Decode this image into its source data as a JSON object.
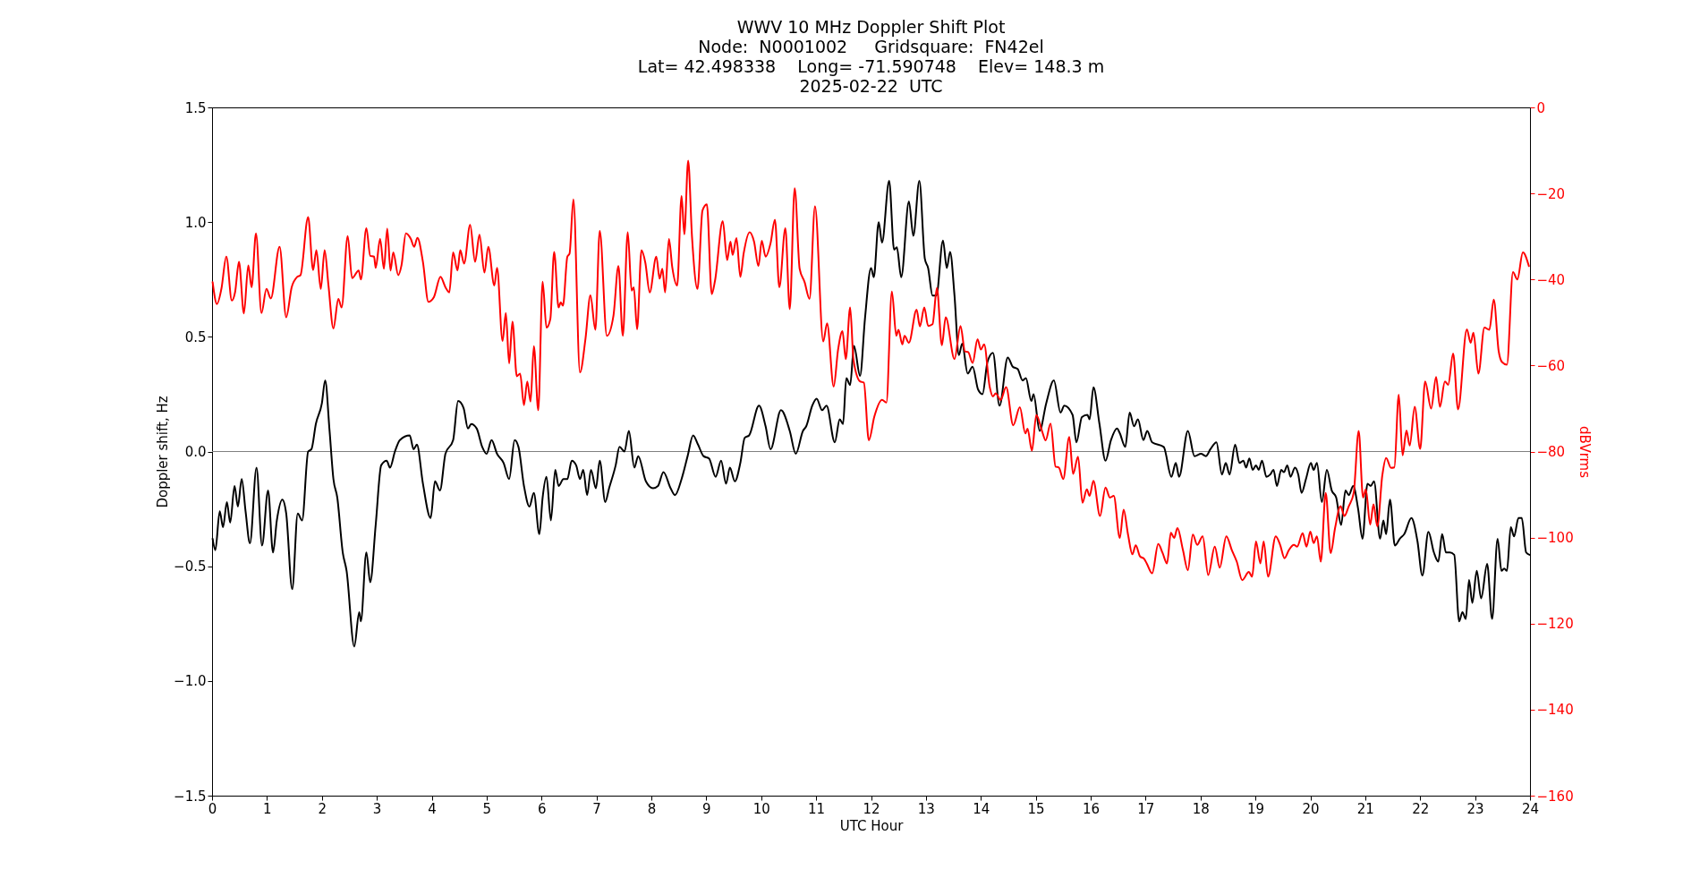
{
  "chart_data": {
    "type": "line",
    "title": "WWV 10 MHz Doppler Shift Plot",
    "subtitle": "Node:  N0001002     Gridsquare:  FN42el\nLat= 42.498338    Long= -71.590748    Elev= 148.3 m\n2025-02-22  UTC",
    "xlabel": "UTC Hour",
    "ylabel": "Doppler shift, Hz",
    "y2label": "dBVrms",
    "xlim": [
      0,
      24
    ],
    "xticks": [
      0,
      1,
      2,
      3,
      4,
      5,
      6,
      7,
      8,
      9,
      10,
      11,
      12,
      13,
      14,
      15,
      16,
      17,
      18,
      19,
      20,
      21,
      22,
      23,
      24
    ],
    "ylim": [
      -1.5,
      1.5
    ],
    "yticks": [
      {
        "value": -1.5,
        "label": "−1.5"
      },
      {
        "value": -1,
        "label": "−1.0"
      },
      {
        "value": -0.5,
        "label": "−0.5"
      },
      {
        "value": 0,
        "label": "0.0"
      },
      {
        "value": 0.5,
        "label": "0.5"
      },
      {
        "value": 1,
        "label": "1.0"
      },
      {
        "value": 1.5,
        "label": "1.5"
      }
    ],
    "y2lim": [
      -160,
      0
    ],
    "y2ticks": [
      {
        "value": -160,
        "label": "−160"
      },
      {
        "value": -140,
        "label": "−140"
      },
      {
        "value": -120,
        "label": "−120"
      },
      {
        "value": -100,
        "label": "−100"
      },
      {
        "value": -80,
        "label": "−80"
      },
      {
        "value": -60,
        "label": "−60"
      },
      {
        "value": -40,
        "label": "−40"
      },
      {
        "value": -20,
        "label": "−20"
      },
      0
    ],
    "ref_lines": [
      {
        "axis": "y",
        "value": 0,
        "color": "#808080"
      }
    ],
    "grid": false,
    "series": [
      {
        "color": "#000000",
        "x": [
          0.01,
          0.06,
          0.14,
          0.2,
          0.27,
          0.33,
          0.41,
          0.47,
          0.54,
          0.61,
          0.69,
          0.81,
          0.91,
          1.02,
          1.11,
          1.18,
          1.28,
          1.35,
          1.46,
          1.56,
          1.64,
          1.75,
          1.81,
          1.89,
          2.0,
          2.06,
          2.14,
          2.21,
          2.28,
          2.38,
          2.45,
          2.59,
          2.68,
          2.71,
          2.81,
          2.88,
          2.98,
          3.08,
          3.18,
          3.24,
          3.33,
          3.42,
          3.6,
          3.67,
          3.73,
          3.84,
          3.98,
          4.06,
          4.15,
          4.25,
          4.39,
          4.48,
          4.58,
          4.66,
          4.72,
          4.82,
          4.92,
          5.0,
          5.09,
          5.19,
          5.31,
          5.41,
          5.51,
          5.58,
          5.68,
          5.78,
          5.86,
          5.96,
          6.02,
          6.09,
          6.17,
          6.25,
          6.31,
          6.4,
          6.47,
          6.55,
          6.63,
          6.7,
          6.76,
          6.83,
          6.9,
          6.99,
          7.06,
          7.16,
          7.23,
          7.35,
          7.42,
          7.51,
          7.59,
          7.69,
          7.76,
          7.9,
          8.03,
          8.12,
          8.22,
          8.35,
          8.43,
          8.55,
          8.66,
          8.76,
          8.85,
          8.95,
          9.05,
          9.17,
          9.27,
          9.36,
          9.43,
          9.52,
          9.62,
          9.7,
          9.78,
          9.96,
          10.08,
          10.17,
          10.36,
          10.52,
          10.63,
          10.76,
          10.82,
          10.93,
          11.01,
          11.11,
          11.19,
          11.34,
          11.43,
          11.49,
          11.55,
          11.62,
          11.69,
          11.8,
          11.89,
          12.0,
          12.05,
          12.14,
          12.2,
          12.33,
          12.42,
          12.47,
          12.55,
          12.69,
          12.77,
          12.88,
          12.98,
          13.04,
          13.12,
          13.19,
          13.31,
          13.38,
          13.44,
          13.52,
          13.6,
          13.66,
          13.76,
          13.85,
          13.95,
          14.03,
          14.12,
          14.22,
          14.34,
          14.49,
          14.58,
          14.67,
          14.76,
          14.82,
          14.92,
          14.96,
          15.07,
          15.19,
          15.33,
          15.45,
          15.52,
          15.67,
          15.74,
          15.84,
          15.94,
          15.98,
          16.05,
          16.16,
          16.27,
          16.37,
          16.48,
          16.53,
          16.63,
          16.71,
          16.79,
          16.86,
          16.96,
          17.03,
          17.12,
          17.33,
          17.47,
          17.55,
          17.61,
          17.77,
          17.89,
          18.01,
          18.1,
          18.18,
          18.29,
          18.39,
          18.46,
          18.53,
          18.63,
          18.71,
          18.78,
          18.83,
          18.89,
          18.95,
          19.01,
          19.06,
          19.12,
          19.2,
          19.27,
          19.33,
          19.39,
          19.47,
          19.52,
          19.58,
          19.64,
          19.72,
          19.78,
          19.84,
          19.92,
          20.01,
          20.06,
          20.12,
          20.21,
          20.3,
          20.39,
          20.47,
          20.56,
          20.64,
          20.7,
          20.78,
          20.87,
          20.95,
          21.04,
          21.1,
          21.16,
          21.27,
          21.33,
          21.38,
          21.45,
          21.54,
          21.63,
          21.71,
          21.84,
          21.95,
          22.04,
          22.15,
          22.25,
          22.33,
          22.4,
          22.47,
          22.54,
          22.62,
          22.71,
          22.77,
          22.83,
          22.89,
          22.95,
          23.03,
          23.11,
          23.22,
          23.31,
          23.41,
          23.48,
          23.53,
          23.58,
          23.65,
          23.71,
          23.79,
          23.85,
          23.93,
          23.99
        ],
        "values": [
          -0.38,
          -0.43,
          -0.26,
          -0.33,
          -0.22,
          -0.31,
          -0.15,
          -0.24,
          -0.12,
          -0.26,
          -0.4,
          -0.07,
          -0.41,
          -0.17,
          -0.44,
          -0.3,
          -0.21,
          -0.27,
          -0.6,
          -0.27,
          -0.3,
          0.0,
          0.01,
          0.12,
          0.21,
          0.31,
          0.09,
          -0.12,
          -0.2,
          -0.44,
          -0.52,
          -0.85,
          -0.7,
          -0.74,
          -0.44,
          -0.57,
          -0.32,
          -0.06,
          -0.04,
          -0.07,
          0.0,
          0.05,
          0.07,
          0.01,
          0.03,
          -0.14,
          -0.29,
          -0.13,
          -0.17,
          -0.01,
          0.05,
          0.22,
          0.19,
          0.1,
          0.12,
          0.1,
          0.02,
          -0.01,
          0.05,
          -0.01,
          -0.05,
          -0.12,
          0.05,
          0.02,
          -0.15,
          -0.24,
          -0.18,
          -0.36,
          -0.2,
          -0.11,
          -0.3,
          -0.08,
          -0.15,
          -0.12,
          -0.12,
          -0.04,
          -0.06,
          -0.12,
          -0.08,
          -0.19,
          -0.08,
          -0.16,
          -0.04,
          -0.22,
          -0.16,
          -0.06,
          0.02,
          0.0,
          0.09,
          -0.07,
          -0.02,
          -0.13,
          -0.16,
          -0.15,
          -0.09,
          -0.16,
          -0.19,
          -0.12,
          -0.02,
          0.07,
          0.03,
          -0.02,
          -0.03,
          -0.11,
          -0.04,
          -0.14,
          -0.07,
          -0.13,
          -0.05,
          0.06,
          0.07,
          0.2,
          0.11,
          0.01,
          0.18,
          0.09,
          -0.01,
          0.09,
          0.11,
          0.2,
          0.23,
          0.18,
          0.2,
          0.04,
          0.14,
          0.12,
          0.32,
          0.29,
          0.46,
          0.33,
          0.58,
          0.8,
          0.76,
          1.0,
          0.91,
          1.18,
          0.88,
          0.89,
          0.76,
          1.09,
          0.94,
          1.18,
          0.84,
          0.8,
          0.68,
          0.68,
          0.92,
          0.8,
          0.87,
          0.68,
          0.42,
          0.47,
          0.34,
          0.37,
          0.27,
          0.25,
          0.39,
          0.43,
          0.2,
          0.41,
          0.37,
          0.36,
          0.31,
          0.32,
          0.22,
          0.25,
          0.09,
          0.21,
          0.31,
          0.17,
          0.2,
          0.16,
          0.04,
          0.15,
          0.16,
          0.14,
          0.28,
          0.12,
          -0.04,
          0.05,
          0.1,
          0.08,
          0.02,
          0.17,
          0.11,
          0.14,
          0.05,
          0.09,
          0.04,
          0.02,
          -0.11,
          -0.05,
          -0.11,
          0.09,
          -0.02,
          -0.01,
          -0.02,
          0.01,
          0.04,
          -0.1,
          -0.05,
          -0.1,
          0.03,
          -0.05,
          -0.04,
          -0.07,
          -0.03,
          -0.08,
          -0.06,
          -0.08,
          -0.04,
          -0.11,
          -0.1,
          -0.08,
          -0.15,
          -0.08,
          -0.09,
          -0.06,
          -0.11,
          -0.07,
          -0.1,
          -0.18,
          -0.12,
          -0.05,
          -0.08,
          -0.05,
          -0.22,
          -0.08,
          -0.17,
          -0.2,
          -0.32,
          -0.17,
          -0.19,
          -0.15,
          -0.25,
          -0.38,
          -0.14,
          -0.15,
          -0.13,
          -0.38,
          -0.3,
          -0.36,
          -0.21,
          -0.41,
          -0.38,
          -0.36,
          -0.29,
          -0.39,
          -0.54,
          -0.35,
          -0.44,
          -0.48,
          -0.36,
          -0.44,
          -0.44,
          -0.45,
          -0.74,
          -0.7,
          -0.73,
          -0.56,
          -0.66,
          -0.52,
          -0.64,
          -0.49,
          -0.73,
          -0.38,
          -0.52,
          -0.51,
          -0.52,
          -0.33,
          -0.37,
          -0.29,
          -0.29,
          -0.44,
          -0.45
        ]
      },
      {
        "color": "#ff0000",
        "axis": "y2",
        "x": [
          0.01,
          0.09,
          0.17,
          0.26,
          0.36,
          0.42,
          0.49,
          0.58,
          0.66,
          0.72,
          0.8,
          0.9,
          0.99,
          1.07,
          1.23,
          1.35,
          1.45,
          1.55,
          1.61,
          1.75,
          1.84,
          1.9,
          1.98,
          2.05,
          2.12,
          2.21,
          2.3,
          2.36,
          2.47,
          2.55,
          2.67,
          2.71,
          2.81,
          2.88,
          2.95,
          2.98,
          3.06,
          3.13,
          3.19,
          3.25,
          3.3,
          3.39,
          3.45,
          3.53,
          3.62,
          3.68,
          3.74,
          3.84,
          3.94,
          4.04,
          4.16,
          4.25,
          4.32,
          4.39,
          4.47,
          4.52,
          4.59,
          4.7,
          4.79,
          4.87,
          4.96,
          5.03,
          5.14,
          5.19,
          5.29,
          5.35,
          5.41,
          5.47,
          5.55,
          5.61,
          5.68,
          5.74,
          5.8,
          5.86,
          5.94,
          6.02,
          6.09,
          6.16,
          6.23,
          6.31,
          6.35,
          6.39,
          6.47,
          6.51,
          6.58,
          6.7,
          6.8,
          6.89,
          6.98,
          7.06,
          7.19,
          7.31,
          7.4,
          7.48,
          7.57,
          7.64,
          7.68,
          7.74,
          7.82,
          7.89,
          7.97,
          8.09,
          8.15,
          8.2,
          8.25,
          8.32,
          8.38,
          8.47,
          8.55,
          8.6,
          8.67,
          8.74,
          8.84,
          8.93,
          9.01,
          9.1,
          9.16,
          9.3,
          9.38,
          9.44,
          9.48,
          9.55,
          9.62,
          9.68,
          9.79,
          9.87,
          9.95,
          10.01,
          10.08,
          10.17,
          10.25,
          10.33,
          10.44,
          10.52,
          10.61,
          10.7,
          10.79,
          10.88,
          10.98,
          11.13,
          11.2,
          11.32,
          11.4,
          11.48,
          11.54,
          11.62,
          11.68,
          11.8,
          11.87,
          11.96,
          12.06,
          12.2,
          12.28,
          12.38,
          12.46,
          12.5,
          12.57,
          12.61,
          12.69,
          12.83,
          12.89,
          12.97,
          13.04,
          13.12,
          13.2,
          13.29,
          13.36,
          13.52,
          13.63,
          13.71,
          13.77,
          13.85,
          13.94,
          14.0,
          14.06,
          14.16,
          14.22,
          14.27,
          14.36,
          14.46,
          14.59,
          14.71,
          14.81,
          14.85,
          14.93,
          15.01,
          15.12,
          15.18,
          15.27,
          15.36,
          15.42,
          15.5,
          15.61,
          15.68,
          15.77,
          15.85,
          15.93,
          15.98,
          16.05,
          16.17,
          16.27,
          16.35,
          16.42,
          16.53,
          16.6,
          16.68,
          16.76,
          16.82,
          16.9,
          16.97,
          17.02,
          17.12,
          17.23,
          17.31,
          17.39,
          17.46,
          17.52,
          17.58,
          17.68,
          17.77,
          17.86,
          17.94,
          18.04,
          18.14,
          18.26,
          18.35,
          18.47,
          18.57,
          18.66,
          18.76,
          18.88,
          18.94,
          19.01,
          19.09,
          19.15,
          19.23,
          19.37,
          19.45,
          19.53,
          19.61,
          19.7,
          19.76,
          19.86,
          19.93,
          20.0,
          20.06,
          20.12,
          20.19,
          20.28,
          20.37,
          20.45,
          20.55,
          20.62,
          20.7,
          20.79,
          20.88,
          20.96,
          21.01,
          21.09,
          21.15,
          21.22,
          21.31,
          21.38,
          21.47,
          21.53,
          21.61,
          21.68,
          21.75,
          21.81,
          21.9,
          22.0,
          22.09,
          22.2,
          22.29,
          22.36,
          22.45,
          22.51,
          22.6,
          22.69,
          22.85,
          22.92,
          22.97,
          23.06,
          23.17,
          23.26,
          23.34,
          23.43,
          23.49,
          23.58,
          23.69,
          23.77,
          23.87,
          23.98
        ],
        "values": [
          -40.6,
          -45.7,
          -42.2,
          -34.7,
          -44.9,
          -42.9,
          -35.9,
          -47.9,
          -36.7,
          -41.8,
          -29.3,
          -47.8,
          -42.2,
          -44.4,
          -32.4,
          -48.8,
          -41.8,
          -39.4,
          -39.0,
          -25.5,
          -37.8,
          -33.2,
          -42.2,
          -33.2,
          -41.4,
          -51.4,
          -44.5,
          -46.5,
          -29.9,
          -39.7,
          -37.9,
          -40.0,
          -28.1,
          -34.5,
          -34.7,
          -37.3,
          -30.6,
          -37.5,
          -28.2,
          -37.9,
          -33.7,
          -39.0,
          -36.7,
          -29.3,
          -30.6,
          -32.4,
          -30.3,
          -35.9,
          -45.2,
          -44.1,
          -39.4,
          -41.8,
          -43.0,
          -33.7,
          -37.9,
          -33.2,
          -36.3,
          -27.3,
          -35.9,
          -29.6,
          -38.4,
          -32.4,
          -41.4,
          -37.3,
          -54.3,
          -47.8,
          -59.5,
          -49.8,
          -62.5,
          -61.9,
          -69.2,
          -63.7,
          -68.4,
          -55.5,
          -70.4,
          -40.5,
          -51.2,
          -49.2,
          -33.6,
          -46.5,
          -45.3,
          -46.1,
          -34.7,
          -34.0,
          -21.4,
          -61.6,
          -53.8,
          -43.7,
          -51.7,
          -28.7,
          -53.1,
          -48.4,
          -36.9,
          -53.1,
          -29.0,
          -42.6,
          -41.8,
          -51.6,
          -33.2,
          -36.1,
          -43.0,
          -34.7,
          -39.8,
          -37.5,
          -43.0,
          -30.6,
          -37.1,
          -41.4,
          -20.6,
          -29.5,
          -12.4,
          -30.1,
          -42.2,
          -24.0,
          -22.5,
          -43.4,
          -40.2,
          -26.4,
          -35.5,
          -31.2,
          -34.3,
          -30.4,
          -39.4,
          -34.0,
          -29.0,
          -31.2,
          -36.9,
          -31.0,
          -34.7,
          -31.6,
          -26.1,
          -41.8,
          -28.1,
          -46.9,
          -18.8,
          -37.5,
          -40.6,
          -44.5,
          -23.0,
          -54.4,
          -50.2,
          -64.9,
          -56.3,
          -52.0,
          -58.5,
          -46.5,
          -58.6,
          -63.7,
          -64.0,
          -77.4,
          -71.9,
          -68.0,
          -68.6,
          -42.8,
          -53.1,
          -51.7,
          -55.1,
          -53.1,
          -54.7,
          -47.0,
          -50.9,
          -46.5,
          -50.8,
          -50.4,
          -42.0,
          -55.3,
          -48.8,
          -58.5,
          -50.8,
          -56.7,
          -56.9,
          -59.4,
          -53.9,
          -56.3,
          -55.1,
          -64.9,
          -67.2,
          -66.5,
          -68.0,
          -65.0,
          -73.9,
          -69.7,
          -75.8,
          -74.7,
          -79.8,
          -71.5,
          -75.5,
          -77.4,
          -73.5,
          -83.5,
          -83.7,
          -86.4,
          -76.6,
          -85.2,
          -81.2,
          -91.9,
          -88.8,
          -90.3,
          -86.8,
          -95.0,
          -88.4,
          -90.7,
          -90.3,
          -100.1,
          -93.5,
          -99.3,
          -103.9,
          -101.8,
          -104.4,
          -104.9,
          -106.0,
          -108.3,
          -101.5,
          -103.6,
          -106.0,
          -98.9,
          -100.1,
          -97.8,
          -102.9,
          -107.6,
          -99.3,
          -101.7,
          -99.7,
          -108.7,
          -102.1,
          -107.0,
          -99.7,
          -102.9,
          -105.6,
          -109.9,
          -108.0,
          -109.1,
          -100.9,
          -106.0,
          -100.9,
          -109.1,
          -99.7,
          -101.7,
          -104.8,
          -102.9,
          -101.7,
          -102.1,
          -99.0,
          -102.1,
          -98.6,
          -101.3,
          -99.7,
          -105.6,
          -89.6,
          -103.6,
          -97.8,
          -92.7,
          -95.0,
          -92.7,
          -89.6,
          -75.2,
          -90.7,
          -88.8,
          -97.0,
          -92.3,
          -97.4,
          -85.6,
          -81.5,
          -83.8,
          -83.7,
          -66.8,
          -80.9,
          -75.1,
          -78.6,
          -69.6,
          -79.4,
          -63.7,
          -70.0,
          -62.7,
          -69.6,
          -63.7,
          -64.5,
          -57.2,
          -70.2,
          -51.6,
          -54.7,
          -52.4,
          -61.9,
          -51.2,
          -51.7,
          -44.7,
          -56.7,
          -59.2,
          -59.8,
          -38.3,
          -40.0,
          -33.7,
          -36.9
        ]
      }
    ]
  }
}
